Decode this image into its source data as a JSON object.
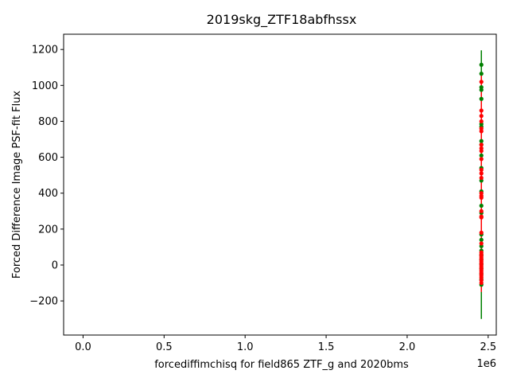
{
  "chart_data": {
    "type": "scatter",
    "title": "2019skg_ZTF18abfhssx",
    "xlabel": "forcediffimchisq for field865 ZTF_g and 2020bms",
    "ylabel": "Forced Difference Image PSF-fit Flux",
    "x_offset_label": "1e6",
    "xlim": [
      -0.12,
      2.55
    ],
    "ylim": [
      -390,
      1285
    ],
    "x_ticks": [
      0.0,
      0.5,
      1.0,
      1.5,
      2.0,
      2.5
    ],
    "x_tick_labels": [
      "0.0",
      "0.5",
      "1.0",
      "1.5",
      "2.0",
      "2.5"
    ],
    "y_ticks": [
      -200,
      0,
      200,
      400,
      600,
      800,
      1000,
      1200
    ],
    "y_tick_labels": [
      "−200",
      "0",
      "200",
      "400",
      "600",
      "800",
      "1000",
      "1200"
    ],
    "grid": false,
    "colors": {
      "green": "#008000",
      "red": "#ff0000"
    },
    "series": [
      {
        "color": "green",
        "x": 2.458,
        "errorbar": [
          -300,
          1195
        ],
        "y": [
          1115,
          1065,
          990,
          975,
          925,
          785,
          770,
          690,
          670,
          610,
          540,
          470,
          410,
          330,
          290,
          170,
          140,
          105,
          80,
          55,
          30,
          5,
          -20,
          -50,
          -80,
          -110
        ]
      },
      {
        "color": "red",
        "x": 2.458,
        "errorbar": [
          -150,
          1060
        ],
        "y": [
          1020,
          860,
          830,
          800,
          760,
          745,
          670,
          650,
          635,
          590,
          530,
          510,
          485,
          400,
          385,
          375,
          300,
          270,
          265,
          180,
          120,
          70,
          60,
          50,
          40,
          30,
          20,
          10,
          0,
          -10,
          -20,
          -30,
          -40,
          -50,
          -60,
          -70,
          -85,
          -100
        ]
      }
    ]
  }
}
